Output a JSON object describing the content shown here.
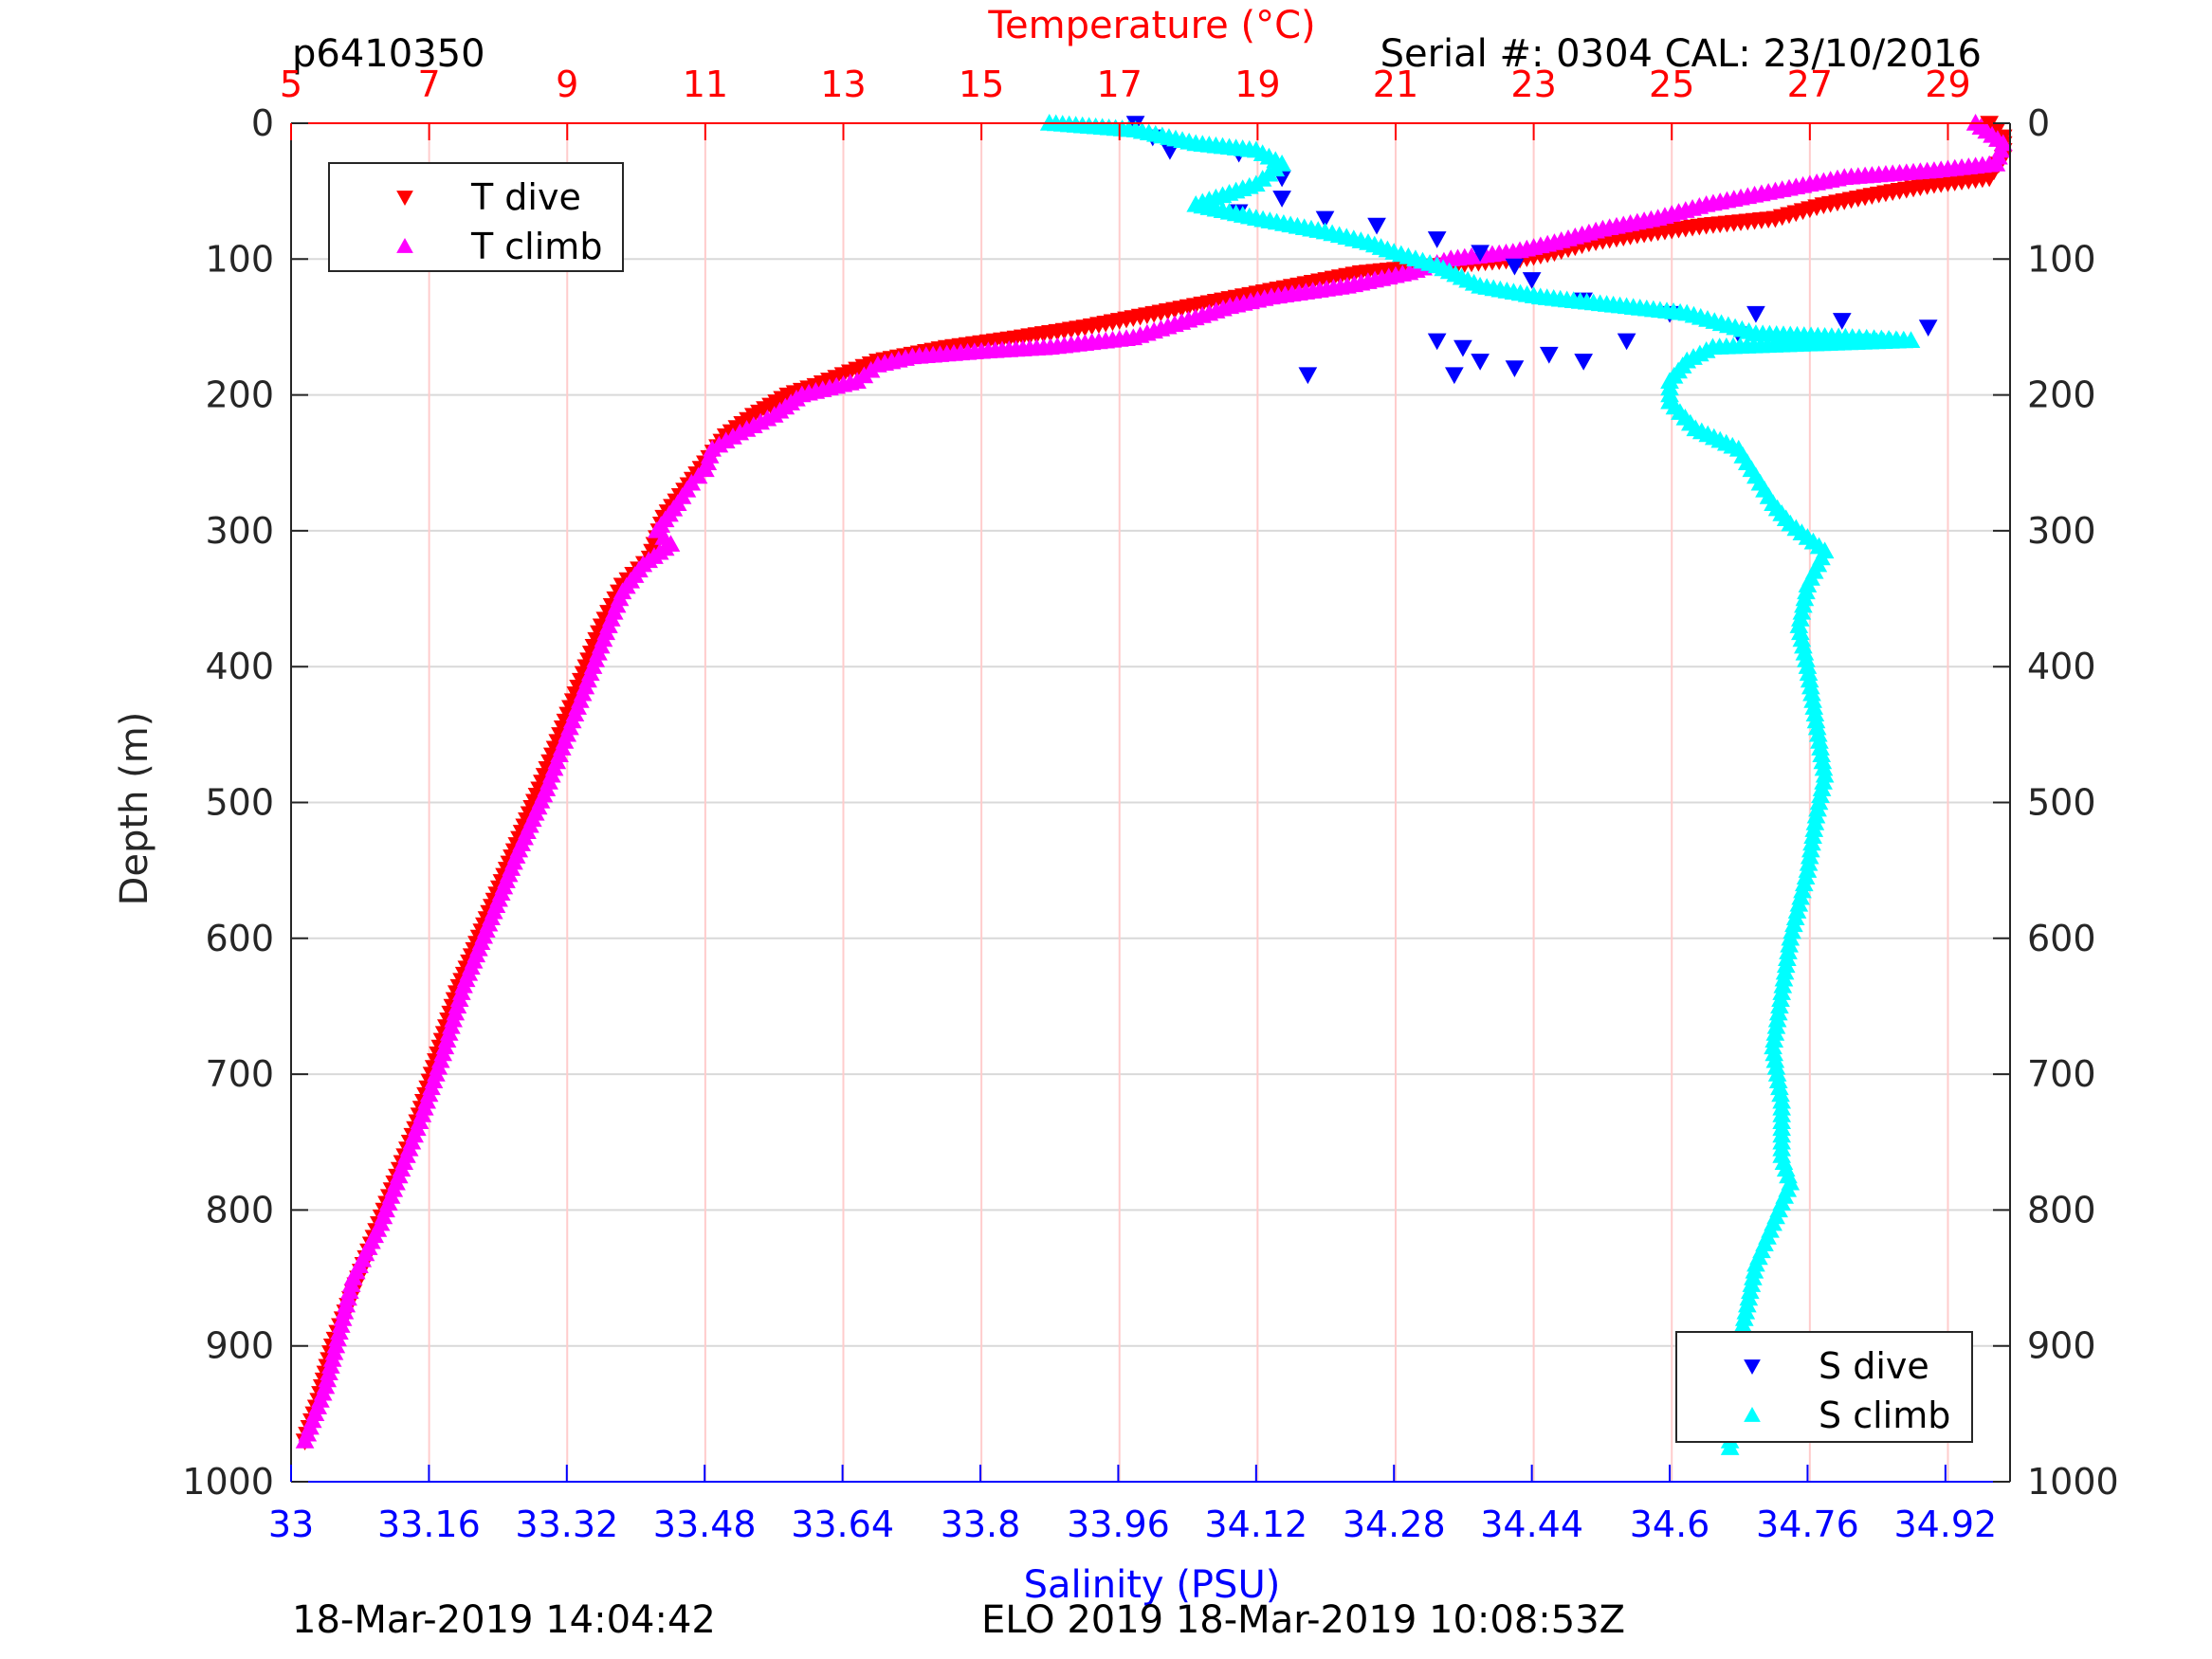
{
  "header": {
    "profile_id": "p6410350",
    "serial_cal": "Serial #: 0304  CAL: 23/10/2016"
  },
  "footer": {
    "plot_time": "18-Mar-2019 14:04:42",
    "mission_time": "ELO 2019 18-Mar-2019 10:08:53Z"
  },
  "colors": {
    "t_dive": "#ff0000",
    "t_climb": "#ff00ff",
    "s_dive": "#0000ff",
    "s_climb": "#00ffff",
    "temp_axis": "#ff0000",
    "sal_axis": "#0000ff",
    "grid_temp": "#ffcccc",
    "grid_depth": "#d9d9d9"
  },
  "chart_data": {
    "type": "scatter",
    "title": "",
    "ylabel": "Depth (m)",
    "ylim": [
      0,
      1000
    ],
    "y_reversed": true,
    "y_ticks": [
      0,
      100,
      200,
      300,
      400,
      500,
      600,
      700,
      800,
      900,
      1000
    ],
    "temperature_axis": {
      "label": "Temperature (°C)",
      "position": "top",
      "range": [
        5,
        29.9
      ],
      "ticks": [
        5,
        7,
        9,
        11,
        13,
        15,
        17,
        19,
        21,
        23,
        25,
        27,
        29
      ],
      "grid": true
    },
    "salinity_axis": {
      "label": "Salinity (PSU)",
      "position": "bottom",
      "range": [
        33,
        34.995
      ],
      "ticks": [
        "33",
        "33.16",
        "33.32",
        "33.48",
        "33.64",
        "33.8",
        "33.96",
        "34.12",
        "34.28",
        "34.44",
        "34.6",
        "34.76",
        "34.92"
      ]
    },
    "legends": [
      {
        "placement": "top-left",
        "entries": [
          "T dive",
          "T climb"
        ]
      },
      {
        "placement": "bottom-right",
        "entries": [
          "S dive",
          "S climb"
        ]
      }
    ],
    "series": [
      {
        "name": "T dive",
        "axis": "temperature",
        "marker": "triangle-down",
        "points": [
          [
            29.6,
            0
          ],
          [
            29.8,
            10
          ],
          [
            29.8,
            25
          ],
          [
            29.6,
            40
          ],
          [
            28.8,
            45
          ],
          [
            28,
            52
          ],
          [
            27.2,
            60
          ],
          [
            26.5,
            70
          ],
          [
            25.5,
            75
          ],
          [
            24.5,
            82
          ],
          [
            23.8,
            88
          ],
          [
            23.3,
            95
          ],
          [
            22.8,
            100
          ],
          [
            21.5,
            105
          ],
          [
            20.5,
            110
          ],
          [
            19.5,
            120
          ],
          [
            18.5,
            130
          ],
          [
            17.5,
            140
          ],
          [
            16.5,
            150
          ],
          [
            15.5,
            158
          ],
          [
            14.5,
            165
          ],
          [
            13.5,
            175
          ],
          [
            13,
            185
          ],
          [
            12.6,
            193
          ],
          [
            12.2,
            200
          ],
          [
            11.7,
            215
          ],
          [
            11.3,
            230
          ],
          [
            11,
            250
          ],
          [
            10.7,
            270
          ],
          [
            10.4,
            290
          ],
          [
            10.3,
            305
          ],
          [
            10.2,
            320
          ],
          [
            9.8,
            340
          ],
          [
            9.5,
            370
          ],
          [
            9.2,
            410
          ],
          [
            8.9,
            450
          ],
          [
            8.6,
            490
          ],
          [
            8.2,
            540
          ],
          [
            7.8,
            590
          ],
          [
            7.4,
            640
          ],
          [
            7.1,
            690
          ],
          [
            6.8,
            740
          ],
          [
            6.5,
            780
          ],
          [
            6.2,
            820
          ],
          [
            5.9,
            860
          ],
          [
            5.6,
            900
          ],
          [
            5.4,
            940
          ],
          [
            5.2,
            970
          ]
        ]
      },
      {
        "name": "T climb",
        "axis": "temperature",
        "marker": "triangle-up",
        "points": [
          [
            29.4,
            0
          ],
          [
            29.8,
            15
          ],
          [
            29.7,
            30
          ],
          [
            28.8,
            35
          ],
          [
            27.5,
            40
          ],
          [
            26.5,
            50
          ],
          [
            25.5,
            60
          ],
          [
            24.8,
            70
          ],
          [
            24,
            78
          ],
          [
            23.3,
            88
          ],
          [
            22.7,
            95
          ],
          [
            21.8,
            100
          ],
          [
            21.2,
            110
          ],
          [
            20.3,
            120
          ],
          [
            19.2,
            128
          ],
          [
            18.6,
            135
          ],
          [
            18,
            145
          ],
          [
            17.2,
            158
          ],
          [
            16,
            165
          ],
          [
            15,
            168
          ],
          [
            14,
            172
          ],
          [
            13.5,
            178
          ],
          [
            13.2,
            190
          ],
          [
            12.8,
            195
          ],
          [
            12.4,
            200
          ],
          [
            12,
            215
          ],
          [
            11.5,
            228
          ],
          [
            11.1,
            240
          ],
          [
            11,
            255
          ],
          [
            10.8,
            265
          ],
          [
            10.6,
            280
          ],
          [
            10.3,
            300
          ],
          [
            10.5,
            310
          ],
          [
            10.1,
            325
          ],
          [
            9.8,
            345
          ],
          [
            9.6,
            370
          ],
          [
            9.3,
            410
          ],
          [
            9,
            450
          ],
          [
            8.7,
            490
          ],
          [
            8.3,
            535
          ],
          [
            7.9,
            585
          ],
          [
            7.5,
            635
          ],
          [
            7.2,
            685
          ],
          [
            6.9,
            730
          ],
          [
            6.6,
            770
          ],
          [
            6.3,
            810
          ],
          [
            5.9,
            850
          ],
          [
            5.7,
            890
          ],
          [
            5.5,
            930
          ],
          [
            5.2,
            970
          ]
        ]
      },
      {
        "name": "S dive",
        "axis": "salinity",
        "marker": "triangle-down",
        "points": [
          [
            33.98,
            0
          ],
          [
            34.0,
            10
          ],
          [
            34.02,
            20
          ],
          [
            34.1,
            22
          ],
          [
            34.15,
            40
          ],
          [
            34.15,
            55
          ],
          [
            34.1,
            65
          ],
          [
            34.2,
            70
          ],
          [
            34.26,
            75
          ],
          [
            34.33,
            85
          ],
          [
            34.38,
            95
          ],
          [
            34.42,
            105
          ],
          [
            34.44,
            115
          ],
          [
            34.5,
            130
          ],
          [
            34.6,
            140
          ],
          [
            34.7,
            140
          ],
          [
            34.8,
            145
          ],
          [
            34.9,
            150
          ],
          [
            34.68,
            155
          ],
          [
            34.38,
            175
          ],
          [
            34.42,
            180
          ],
          [
            34.46,
            170
          ],
          [
            34.5,
            175
          ],
          [
            34.33,
            160
          ],
          [
            34.35,
            185
          ],
          [
            34.18,
            185
          ],
          [
            34.36,
            165
          ],
          [
            34.55,
            160
          ]
        ]
      },
      {
        "name": "S climb",
        "axis": "salinity",
        "marker": "triangle-up",
        "points": [
          [
            33.88,
            0
          ],
          [
            33.98,
            5
          ],
          [
            34.05,
            15
          ],
          [
            34.12,
            20
          ],
          [
            34.15,
            30
          ],
          [
            34.12,
            45
          ],
          [
            34.05,
            60
          ],
          [
            34.12,
            70
          ],
          [
            34.2,
            80
          ],
          [
            34.25,
            88
          ],
          [
            34.28,
            95
          ],
          [
            34.33,
            105
          ],
          [
            34.38,
            120
          ],
          [
            34.45,
            128
          ],
          [
            34.55,
            135
          ],
          [
            34.62,
            140
          ],
          [
            34.7,
            155
          ],
          [
            34.82,
            158
          ],
          [
            34.88,
            160
          ],
          [
            34.65,
            165
          ],
          [
            34.62,
            175
          ],
          [
            34.6,
            190
          ],
          [
            34.6,
            205
          ],
          [
            34.63,
            225
          ],
          [
            34.68,
            240
          ],
          [
            34.7,
            260
          ],
          [
            34.72,
            280
          ],
          [
            34.74,
            295
          ],
          [
            34.78,
            315
          ],
          [
            34.76,
            340
          ],
          [
            34.75,
            370
          ],
          [
            34.76,
            400
          ],
          [
            34.77,
            440
          ],
          [
            34.78,
            480
          ],
          [
            34.77,
            510
          ],
          [
            34.76,
            550
          ],
          [
            34.74,
            600
          ],
          [
            34.73,
            640
          ],
          [
            34.72,
            680
          ],
          [
            34.73,
            720
          ],
          [
            34.73,
            760
          ],
          [
            34.74,
            780
          ],
          [
            34.72,
            810
          ],
          [
            34.7,
            840
          ],
          [
            34.69,
            870
          ],
          [
            34.68,
            900
          ],
          [
            34.68,
            930
          ],
          [
            34.67,
            960
          ],
          [
            34.67,
            975
          ]
        ]
      }
    ]
  }
}
